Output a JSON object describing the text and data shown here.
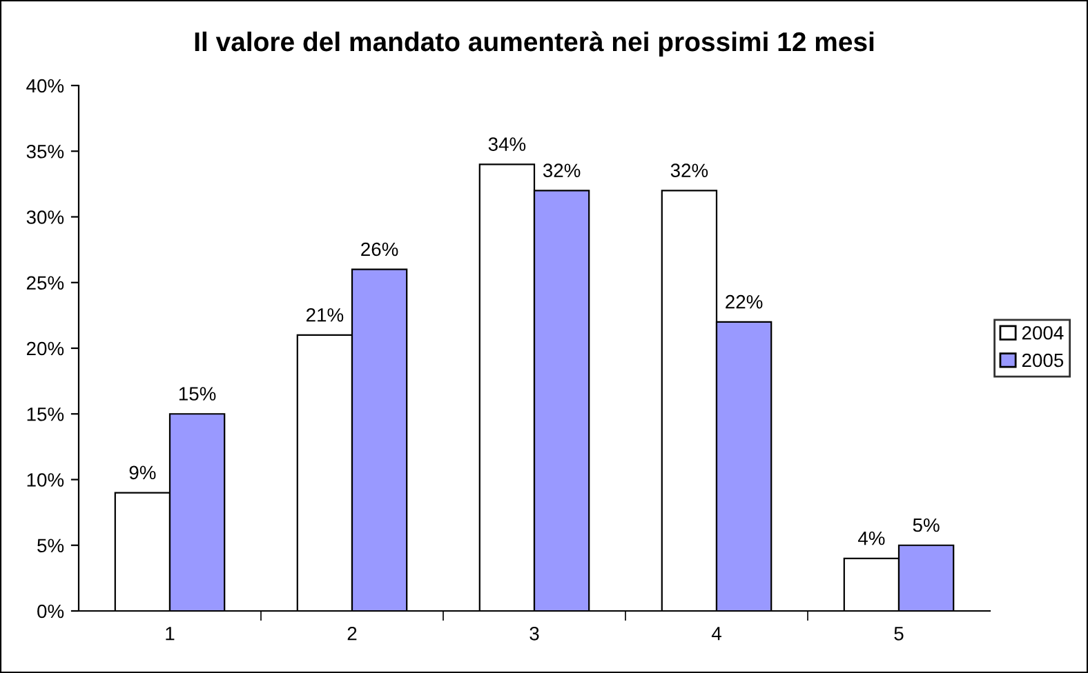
{
  "chart_data": {
    "type": "bar",
    "title": "Il valore del mandato aumenterà nei prossimi 12 mesi",
    "categories": [
      "1",
      "2",
      "3",
      "4",
      "5"
    ],
    "series": [
      {
        "name": "2004",
        "color": "#ffffff",
        "values": [
          9,
          21,
          34,
          32,
          4
        ],
        "value_labels": [
          "9%",
          "21%",
          "34%",
          "32%",
          "4%"
        ]
      },
      {
        "name": "2005",
        "color": "#9999ff",
        "values": [
          15,
          26,
          32,
          22,
          5
        ],
        "value_labels": [
          "15%",
          "26%",
          "32%",
          "22%",
          "5%"
        ]
      }
    ],
    "ylim": [
      0,
      40
    ],
    "yticks": [
      {
        "value": 0,
        "label": "0%"
      },
      {
        "value": 5,
        "label": "5%"
      },
      {
        "value": 10,
        "label": "10%"
      },
      {
        "value": 15,
        "label": "15%"
      },
      {
        "value": 20,
        "label": "20%"
      },
      {
        "value": 25,
        "label": "25%"
      },
      {
        "value": 30,
        "label": "30%"
      },
      {
        "value": 35,
        "label": "35%"
      },
      {
        "value": 40,
        "label": "40%"
      }
    ],
    "grid": false,
    "legend": "right"
  }
}
